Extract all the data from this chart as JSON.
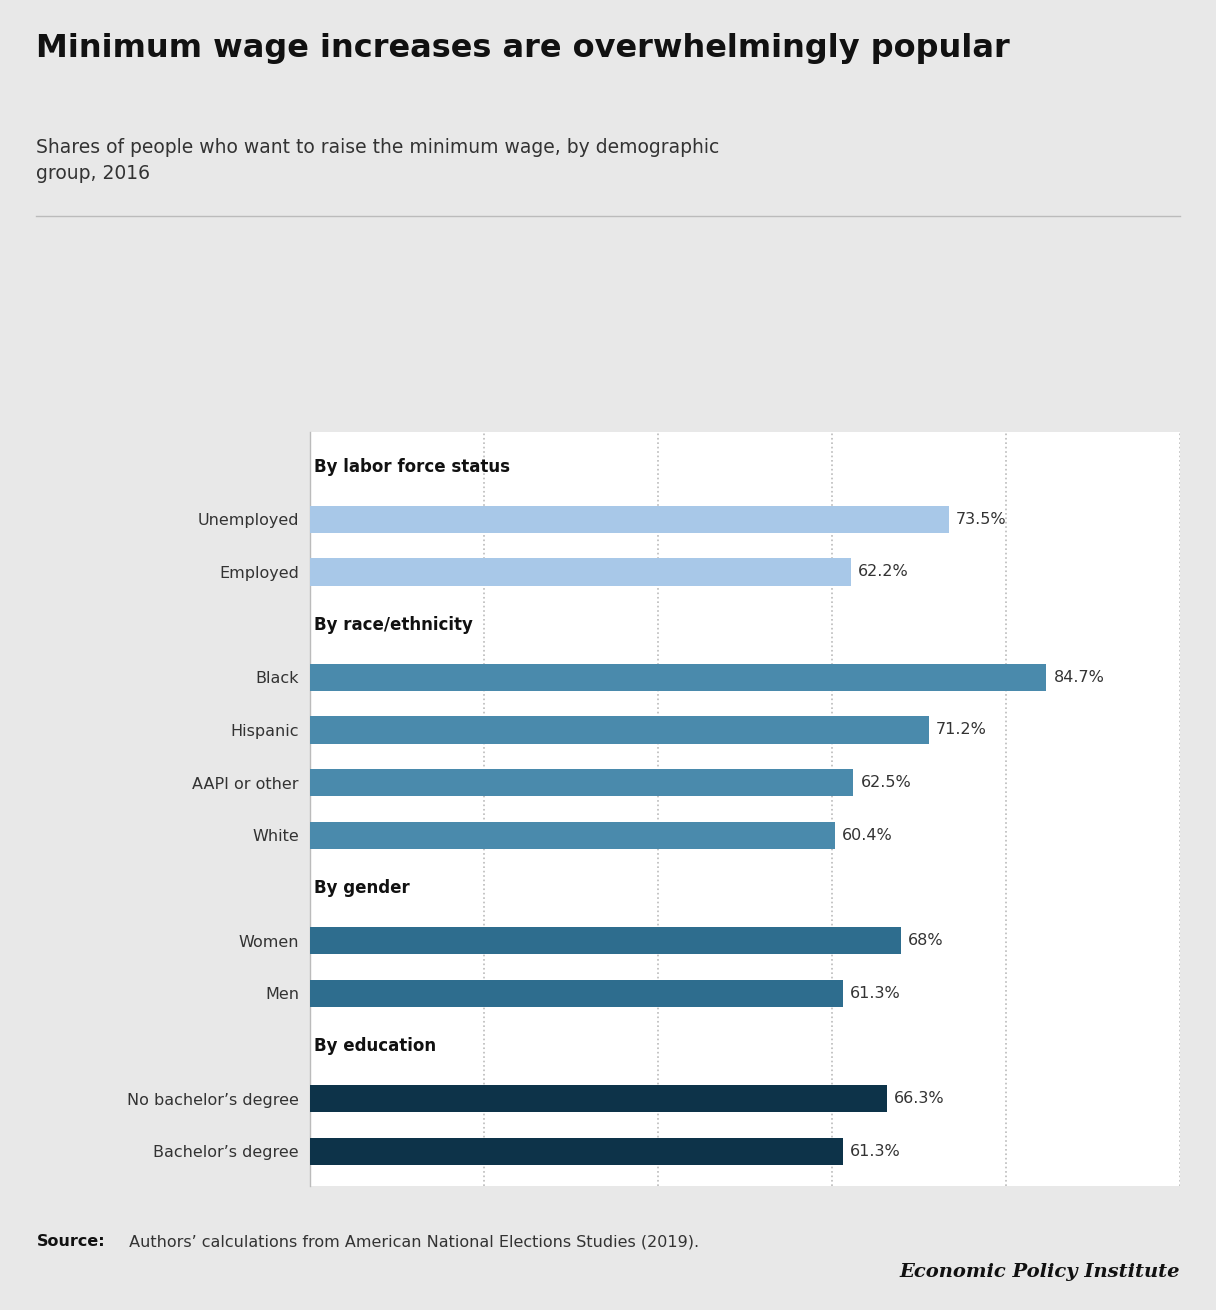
{
  "title": "Minimum wage increases are overwhelmingly popular",
  "subtitle": "Shares of people who want to raise the minimum wage, by demographic\ngroup, 2016",
  "source": "Authors’ calculations from American National Elections Studies (2019).",
  "branding": "Economic Policy Institute",
  "background_color": "#e8e8e8",
  "plot_bg_color": "#ffffff",
  "categories": [
    "Bachelor’s degree",
    "No bachelor’s degree",
    "By education",
    "Men",
    "Women",
    "By gender",
    "White",
    "AAPI or other",
    "Hispanic",
    "Black",
    "By race/ethnicity",
    "Employed",
    "Unemployed",
    "By labor force status"
  ],
  "values": [
    61.3,
    66.3,
    null,
    61.3,
    68.0,
    null,
    60.4,
    62.5,
    71.2,
    84.7,
    null,
    62.2,
    73.5,
    null
  ],
  "bar_colors": [
    "#0d3349",
    "#0d3349",
    null,
    "#2e6d8e",
    "#2e6d8e",
    null,
    "#4a8aac",
    "#4a8aac",
    "#4a8aac",
    "#4a8aac",
    null,
    "#a8c8e8",
    "#a8c8e8",
    null
  ],
  "section_headers": [
    "By labor force status",
    "By race/ethnicity",
    "By gender",
    "By education"
  ],
  "xlim": [
    0,
    100
  ],
  "bar_height": 0.52,
  "grid_color": "#bbbbbb",
  "grid_positions": [
    20,
    40,
    60,
    80,
    100
  ]
}
